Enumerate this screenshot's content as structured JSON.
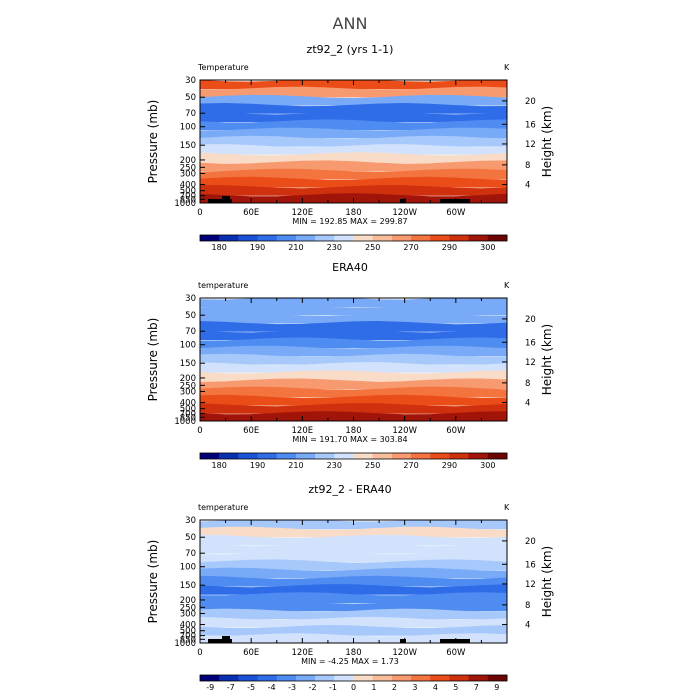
{
  "page_title": "ANN",
  "chart_data": [
    {
      "type": "heatmap",
      "title": "zt92_2 (yrs 1-1)",
      "variable": "Temperature",
      "units": "K",
      "ylabel": "Pressure (mb)",
      "ylabel_right": "Height (km)",
      "x_ticks": [
        "0",
        "60E",
        "120E",
        "180",
        "120W",
        "60W"
      ],
      "y_ticks": [
        "30",
        "50",
        "70",
        "100",
        "150",
        "200",
        "250",
        "300",
        "400",
        "500",
        "700",
        "850",
        "1000"
      ],
      "y_ticks_right": [
        "20",
        "16",
        "12",
        "8",
        "4"
      ],
      "stats_text": "MIN = 192.85   MAX = 299.87",
      "min": 192.85,
      "max": 299.87,
      "colorbar_labels": [
        "180",
        "190",
        "210",
        "230",
        "250",
        "270",
        "290",
        "300"
      ],
      "colors": [
        "#00007a",
        "#0a2fb0",
        "#1a53d8",
        "#2f6ce8",
        "#4f8cf2",
        "#79aaf7",
        "#a7c8fb",
        "#d2e2fc",
        "#f9dcc8",
        "#f8bd9a",
        "#f79a70",
        "#f3743f",
        "#ea4d18",
        "#cf300d",
        "#a1140a",
        "#6e0505"
      ],
      "levels": [
        12,
        10,
        5,
        3,
        3,
        4,
        5,
        6,
        7,
        8,
        10,
        11,
        12,
        13,
        14
      ]
    },
    {
      "type": "heatmap",
      "title": "ERA40",
      "variable": "temperature",
      "units": "K",
      "ylabel": "Pressure (mb)",
      "ylabel_right": "Height (km)",
      "x_ticks": [
        "0",
        "60E",
        "120E",
        "180",
        "120W",
        "60W"
      ],
      "y_ticks": [
        "30",
        "50",
        "70",
        "100",
        "150",
        "200",
        "250",
        "300",
        "400",
        "500",
        "700",
        "850",
        "1000"
      ],
      "y_ticks_right": [
        "20",
        "16",
        "12",
        "8",
        "4"
      ],
      "stats_text": "MIN = 191.70   MAX = 303.84",
      "min": 191.7,
      "max": 303.84,
      "colorbar_labels": [
        "180",
        "190",
        "210",
        "230",
        "250",
        "270",
        "290",
        "300"
      ],
      "colors": [
        "#00007a",
        "#0a2fb0",
        "#1a53d8",
        "#2f6ce8",
        "#4f8cf2",
        "#79aaf7",
        "#a7c8fb",
        "#d2e2fc",
        "#f9dcc8",
        "#f8bd9a",
        "#f79a70",
        "#f3743f",
        "#ea4d18",
        "#cf300d",
        "#a1140a",
        "#6e0505"
      ],
      "levels": [
        5,
        5,
        5,
        3,
        3,
        4,
        5,
        6,
        7,
        8,
        10,
        11,
        12,
        13,
        14
      ]
    },
    {
      "type": "heatmap",
      "title": "zt92_2 - ERA40",
      "variable": "temperature",
      "units": "K",
      "ylabel": "Pressure (mb)",
      "ylabel_right": "Height (km)",
      "x_ticks": [
        "0",
        "60E",
        "120E",
        "180",
        "120W",
        "60W"
      ],
      "y_ticks": [
        "30",
        "50",
        "70",
        "100",
        "150",
        "200",
        "250",
        "300",
        "400",
        "500",
        "700",
        "850",
        "1000"
      ],
      "y_ticks_right": [
        "20",
        "16",
        "12",
        "8",
        "4"
      ],
      "stats_text": "MIN =  -4.25   MAX =   1.73",
      "min": -4.25,
      "max": 1.73,
      "colorbar_labels": [
        "-9",
        "-7",
        "-5",
        "-4",
        "-3",
        "-2",
        "-1",
        "0",
        "1",
        "2",
        "3",
        "4",
        "5",
        "7",
        "9"
      ],
      "colors": [
        "#00007a",
        "#0a2fb0",
        "#1a53d8",
        "#2f6ce8",
        "#4f8cf2",
        "#79aaf7",
        "#a7c8fb",
        "#d2e2fc",
        "#f9dcc8",
        "#f8bd9a",
        "#f79a70",
        "#f3743f",
        "#ea4d18",
        "#cf300d",
        "#a1140a",
        "#6e0505"
      ],
      "levels": [
        6,
        8,
        7,
        7,
        7,
        6,
        5,
        4,
        3,
        4,
        4,
        6,
        7,
        6,
        7
      ]
    }
  ]
}
